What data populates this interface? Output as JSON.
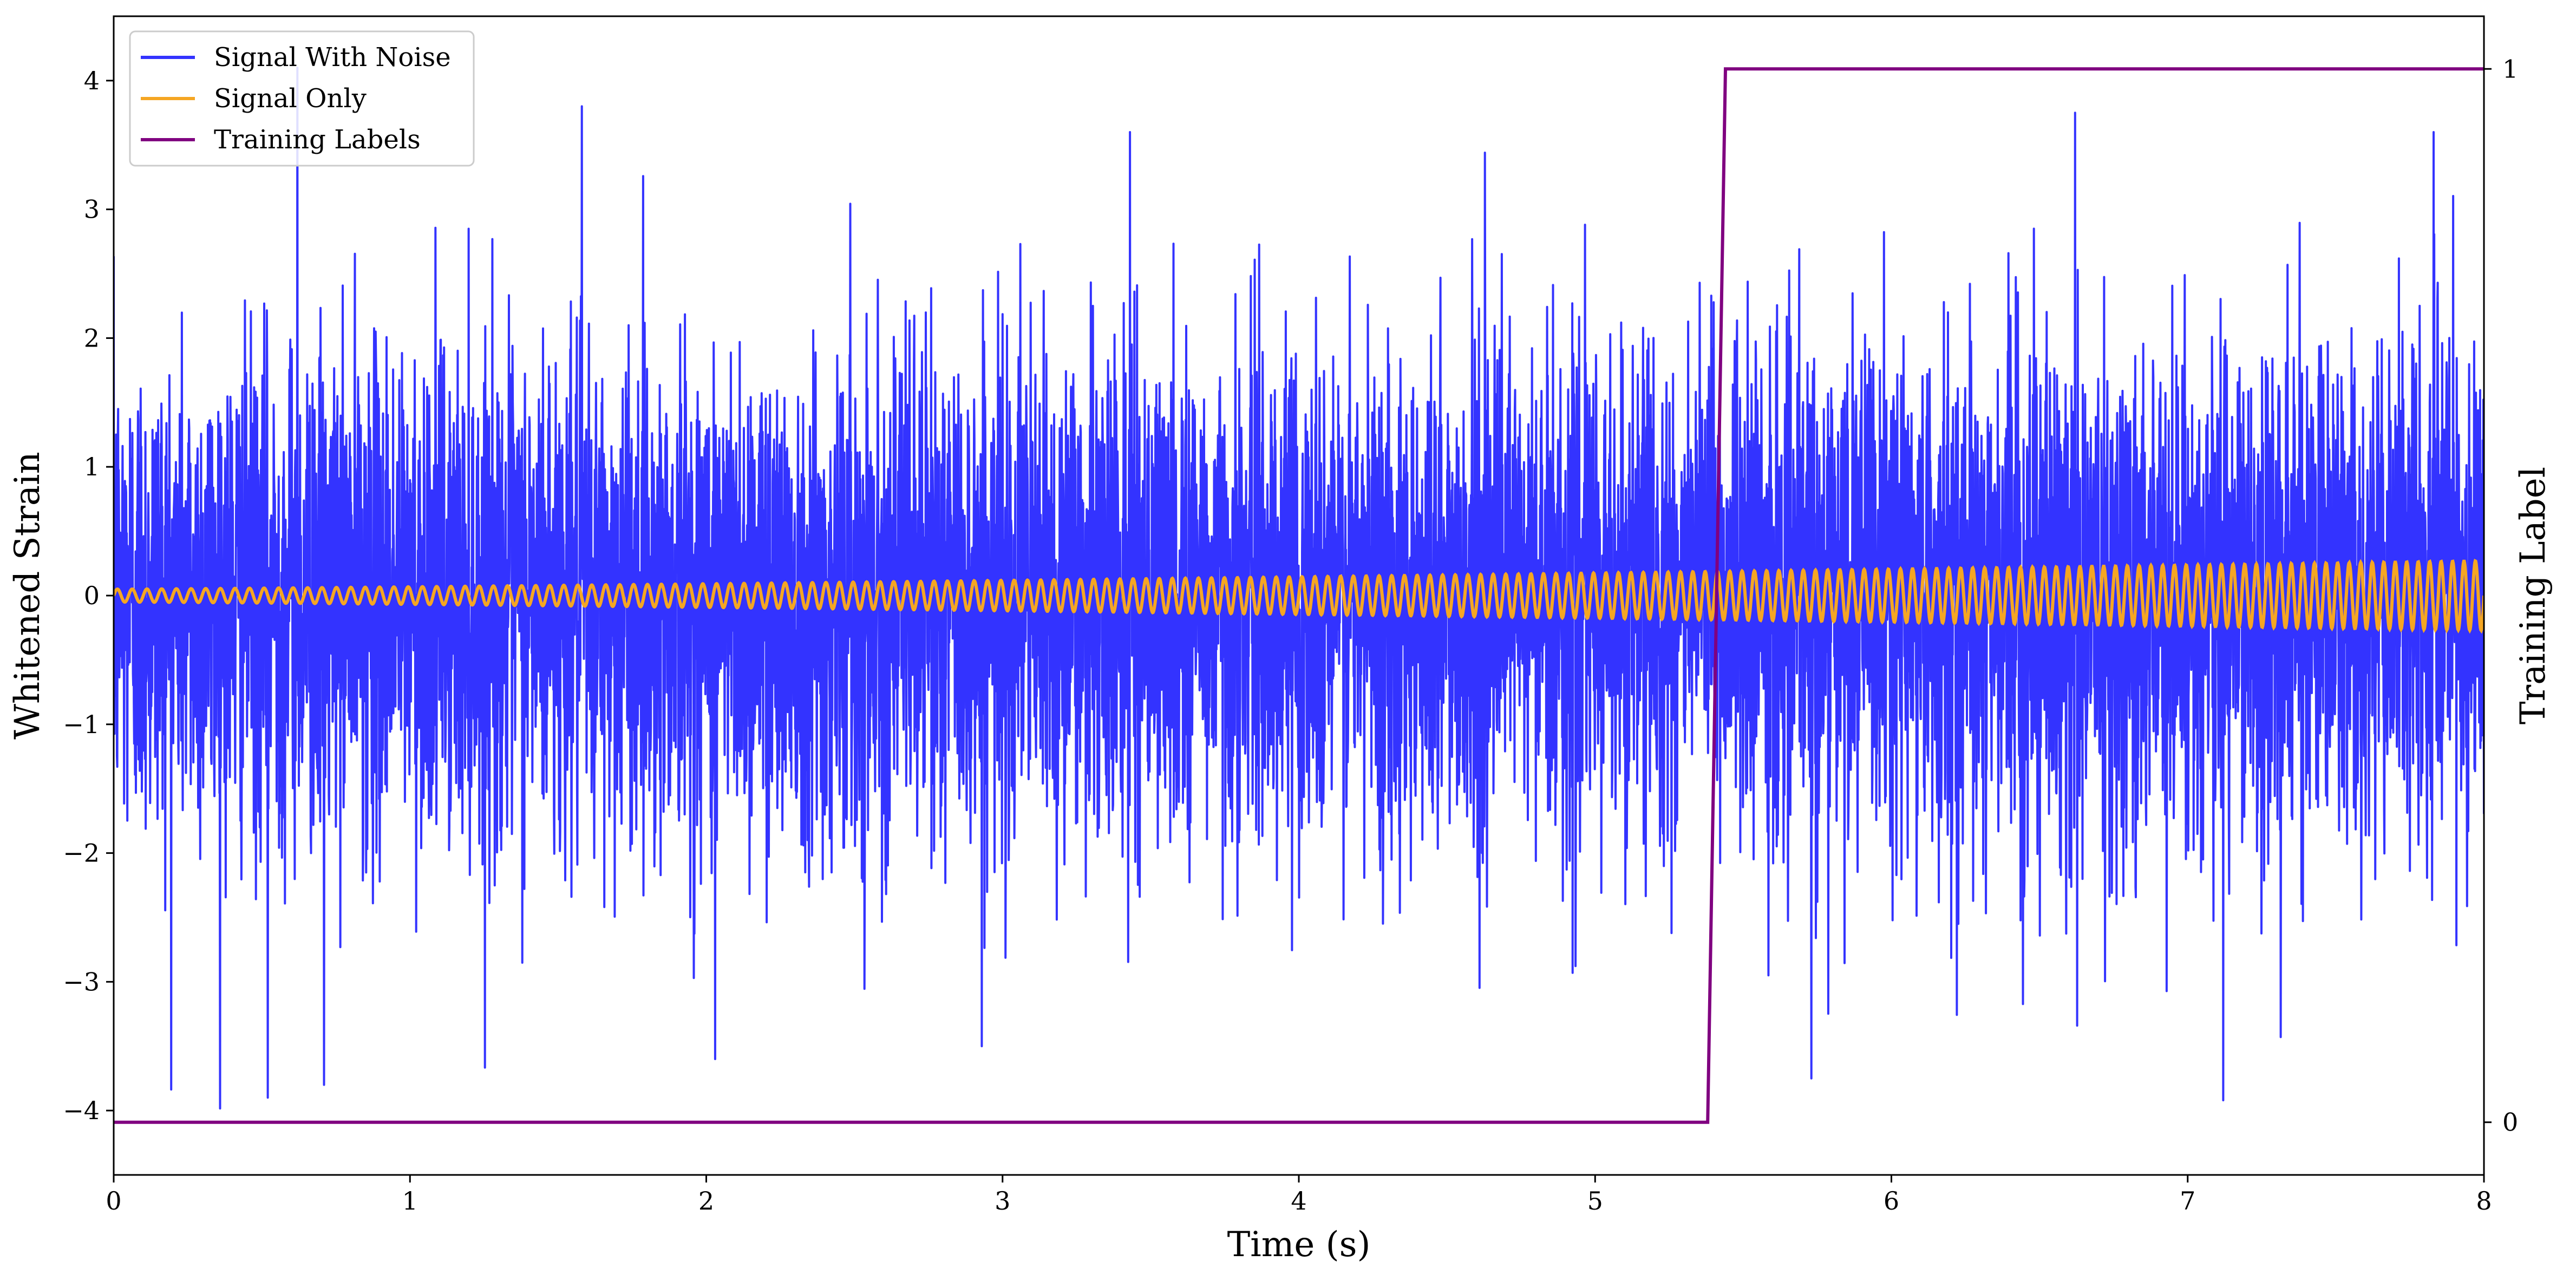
{
  "chart_data": {
    "type": "line",
    "xlabel": "Time (s)",
    "ylabel": "Whitened Strain",
    "y2label": "Training Label",
    "xlim": [
      0,
      8
    ],
    "ylim": [
      -4.5,
      4.5
    ],
    "y2lim": [
      -0.05,
      1.05
    ],
    "x_ticks": [
      0,
      1,
      2,
      3,
      4,
      5,
      6,
      7,
      8
    ],
    "y_ticks": [
      -4,
      -3,
      -2,
      -1,
      0,
      1,
      2,
      3,
      4
    ],
    "y2_ticks": [
      0,
      1
    ],
    "grid": false,
    "legend": {
      "placement": "top-left",
      "entries": [
        "Signal With Noise",
        "Signal Only",
        "Training Labels"
      ]
    },
    "series": [
      {
        "name": "Signal With Noise",
        "color": "#3333ff",
        "axis": "left",
        "description_values": "gaussian-like whitened noise, std ~0.9, peaks ~ +/-4",
        "noise_peaks": [
          {
            "x": 0.52,
            "y": -3.9
          },
          {
            "x": 0.62,
            "y": 4.1
          },
          {
            "x": 0.71,
            "y": -3.8
          },
          {
            "x": 1.58,
            "y": 3.8
          },
          {
            "x": 2.03,
            "y": -3.6
          },
          {
            "x": 2.93,
            "y": -3.5
          },
          {
            "x": 3.43,
            "y": 3.6
          },
          {
            "x": 5.73,
            "y": -3.75
          },
          {
            "x": 6.62,
            "y": 3.75
          },
          {
            "x": 7.12,
            "y": -3.92
          },
          {
            "x": 7.83,
            "y": 3.6
          }
        ]
      },
      {
        "name": "Signal Only",
        "color": "#f5a623",
        "axis": "left",
        "description_values": "chirp oscillation, amplitude grows from ~0.05 at t=0 to ~0.27 at t=8",
        "amplitude_start": 0.05,
        "amplitude_end": 0.27,
        "frequency_start_hz": 20,
        "frequency_end_hz": 26
      },
      {
        "name": "Training Labels",
        "color": "#800080",
        "axis": "right",
        "x": [
          0,
          5.38,
          5.44,
          8
        ],
        "y": [
          0,
          0,
          1,
          1
        ]
      }
    ]
  }
}
